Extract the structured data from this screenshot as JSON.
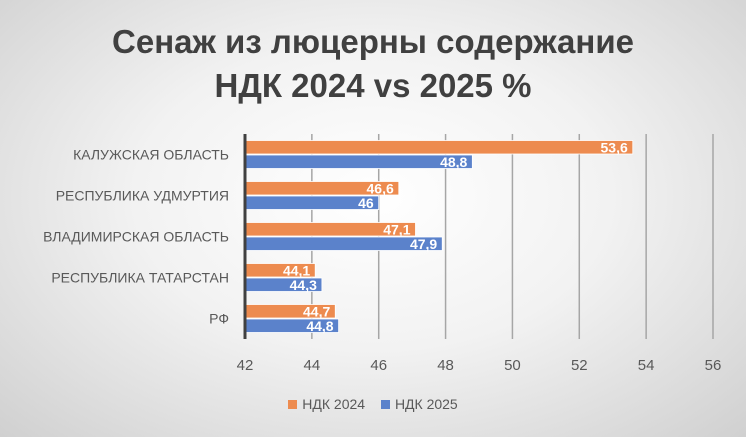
{
  "chart_data": {
    "type": "bar",
    "orientation": "horizontal",
    "title_lines": [
      "Сенаж из люцерны содержание",
      "НДК 2024 vs 2025 %"
    ],
    "categories": [
      "КАЛУЖСКАЯ ОБЛАСТЬ",
      "РЕСПУБЛИКА УДМУРТИЯ",
      "ВЛАДИМИРСКАЯ ОБЛАСТЬ",
      "РЕСПУБЛИКА ТАТАРСТАН",
      "РФ"
    ],
    "series": [
      {
        "name": "НДК 2024",
        "color": "#ED8B4F",
        "values": [
          53.6,
          46.6,
          47.1,
          44.1,
          44.7
        ],
        "labels": [
          "53,6",
          "46,6",
          "47,1",
          "44,1",
          "44,7"
        ]
      },
      {
        "name": "НДК 2025",
        "color": "#5B82CB",
        "values": [
          48.8,
          46,
          47.9,
          44.3,
          44.8
        ],
        "labels": [
          "48,8",
          "46",
          "47,9",
          "44,3",
          "44,8"
        ]
      }
    ],
    "xlim": [
      42,
      56
    ],
    "xticks": [
      "42",
      "44",
      "46",
      "48",
      "50",
      "52",
      "54",
      "56"
    ],
    "grid": true,
    "legend": "bottom"
  }
}
